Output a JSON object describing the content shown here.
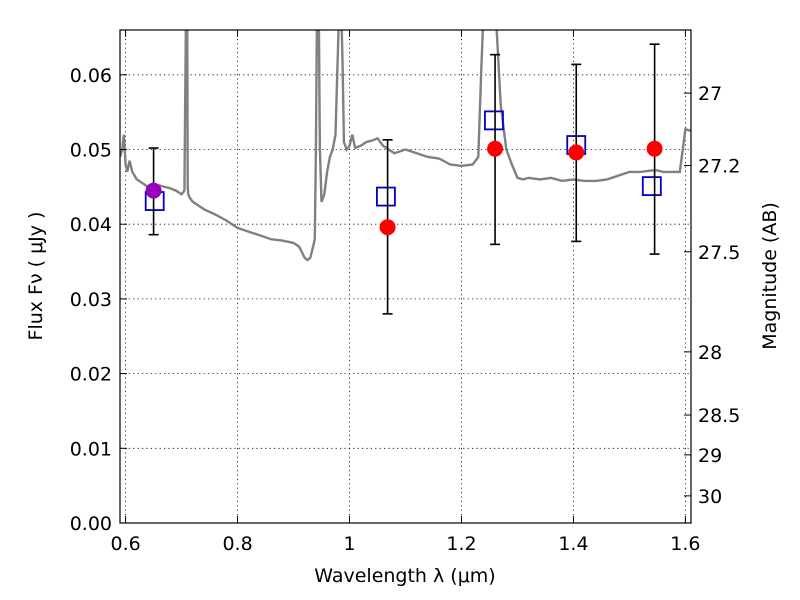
{
  "chart_data": {
    "type": "scatter",
    "xlabel": "Wavelength  λ (μm)",
    "ylabel": "Flux  Fν  ( μJy )",
    "y2label": "Magnitude (AB)",
    "xlim": [
      0.59,
      1.61
    ],
    "ylim": [
      0.0,
      0.066
    ],
    "grid": true,
    "x_ticks": [
      "0.6",
      "0.8",
      "1",
      "1.2",
      "1.4",
      "1.6"
    ],
    "y_ticks": [
      "0.00",
      "0.01",
      "0.02",
      "0.03",
      "0.04",
      "0.05",
      "0.06"
    ],
    "y2_ticks": [
      {
        "label": "27",
        "mag": 27.0
      },
      {
        "label": "27.2",
        "mag": 27.2
      },
      {
        "label": "27.5",
        "mag": 27.5
      },
      {
        "label": "28",
        "mag": 28.0
      },
      {
        "label": "28.5",
        "mag": 28.5
      },
      {
        "label": "29",
        "mag": 29.0
      },
      {
        "label": "30",
        "mag": 30.0
      }
    ],
    "colors": {
      "spectrum": "#808080",
      "observed": "#ff0000",
      "observed_first": "#9900bb",
      "model": "#0000cc",
      "errorbar": "#000000"
    },
    "series": [
      {
        "kind": "observed",
        "points": [
          {
            "x": 0.65,
            "y": 0.0445,
            "yerr_low": 0.0386,
            "yerr_high": 0.0502
          },
          {
            "x": 1.068,
            "y": 0.0396,
            "yerr_low": 0.028,
            "yerr_high": 0.0513
          },
          {
            "x": 1.26,
            "y": 0.0501,
            "yerr_low": 0.0373,
            "yerr_high": 0.0627
          },
          {
            "x": 1.405,
            "y": 0.0496,
            "yerr_low": 0.0377,
            "yerr_high": 0.0614
          },
          {
            "x": 1.545,
            "y": 0.0501,
            "yerr_low": 0.036,
            "yerr_high": 0.0641
          }
        ]
      },
      {
        "kind": "model",
        "points": [
          {
            "x": 0.652,
            "y": 0.0431
          },
          {
            "x": 1.065,
            "y": 0.0437
          },
          {
            "x": 1.258,
            "y": 0.0539
          },
          {
            "x": 1.405,
            "y": 0.0506
          },
          {
            "x": 1.54,
            "y": 0.0451
          }
        ]
      },
      {
        "kind": "spectrum",
        "x": [
          0.59,
          0.594,
          0.597,
          0.6,
          0.603,
          0.607,
          0.612,
          0.62,
          0.63,
          0.64,
          0.65,
          0.66,
          0.67,
          0.68,
          0.69,
          0.7,
          0.705,
          0.708,
          0.71,
          0.711,
          0.712,
          0.715,
          0.72,
          0.73,
          0.74,
          0.76,
          0.78,
          0.8,
          0.82,
          0.84,
          0.86,
          0.88,
          0.9,
          0.91,
          0.92,
          0.925,
          0.93,
          0.935,
          0.938,
          0.94,
          0.942,
          0.945,
          0.947,
          0.95,
          0.955,
          0.96,
          0.965,
          0.97,
          0.975,
          0.98,
          0.982,
          0.985,
          0.988,
          0.99,
          0.995,
          1.0,
          1.005,
          1.01,
          1.02,
          1.03,
          1.04,
          1.05,
          1.06,
          1.08,
          1.1,
          1.12,
          1.14,
          1.16,
          1.18,
          1.2,
          1.22,
          1.23,
          1.235,
          1.24,
          1.245,
          1.25,
          1.26,
          1.27,
          1.28,
          1.29,
          1.3,
          1.31,
          1.32,
          1.34,
          1.36,
          1.38,
          1.4,
          1.42,
          1.44,
          1.46,
          1.48,
          1.5,
          1.52,
          1.54,
          1.55,
          1.56,
          1.57,
          1.58,
          1.59,
          1.6,
          1.61
        ],
        "y": [
          0.049,
          0.05,
          0.052,
          0.048,
          0.047,
          0.0485,
          0.047,
          0.046,
          0.0455,
          0.045,
          0.0448,
          0.0452,
          0.045,
          0.0448,
          0.0445,
          0.044,
          0.0445,
          0.07,
          0.07,
          0.045,
          0.044,
          0.0435,
          0.043,
          0.0425,
          0.042,
          0.0413,
          0.0405,
          0.0395,
          0.039,
          0.0385,
          0.038,
          0.0378,
          0.0375,
          0.037,
          0.0355,
          0.0352,
          0.0355,
          0.037,
          0.038,
          0.05,
          0.07,
          0.07,
          0.05,
          0.043,
          0.044,
          0.047,
          0.049,
          0.05,
          0.052,
          0.065,
          0.07,
          0.07,
          0.06,
          0.051,
          0.05,
          0.0505,
          0.052,
          0.0502,
          0.0505,
          0.051,
          0.0512,
          0.0515,
          0.0505,
          0.0495,
          0.05,
          0.0495,
          0.049,
          0.0488,
          0.048,
          0.0478,
          0.048,
          0.049,
          0.06,
          0.07,
          0.07,
          0.07,
          0.07,
          0.056,
          0.05,
          0.048,
          0.0462,
          0.046,
          0.0462,
          0.046,
          0.0462,
          0.0458,
          0.046,
          0.0458,
          0.0458,
          0.046,
          0.0465,
          0.047,
          0.047,
          0.0472,
          0.0472,
          0.047,
          0.047,
          0.047,
          0.047,
          0.0527,
          0.0525
        ]
      }
    ]
  }
}
